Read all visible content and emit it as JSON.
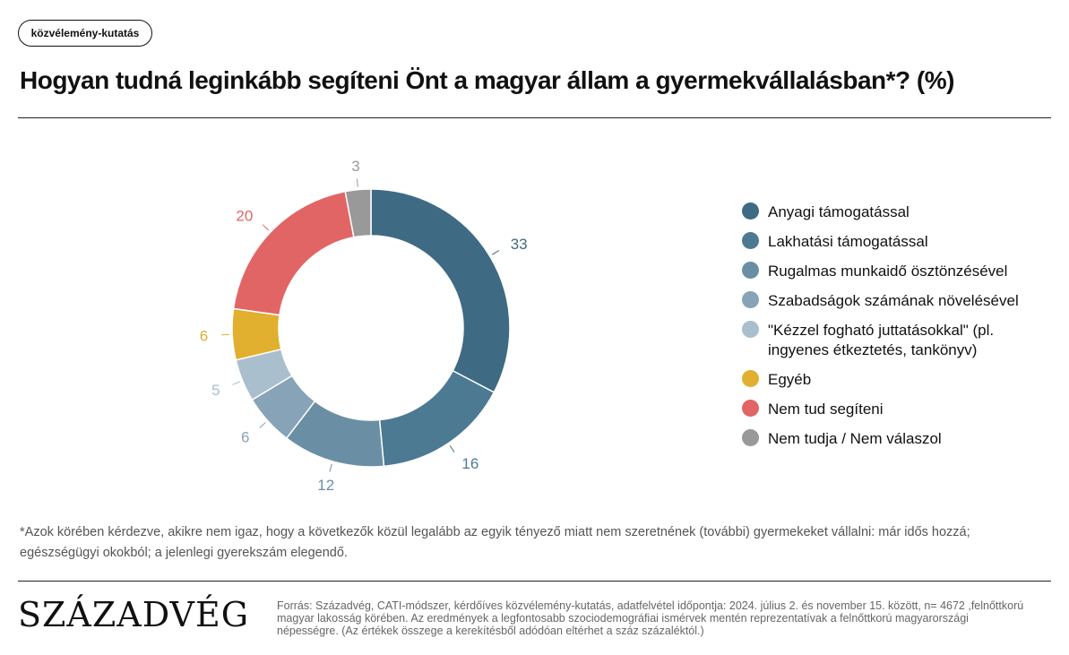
{
  "tag": "közvélemény-kutatás",
  "title": "Hogyan tudná leginkább segíteni Önt a magyar állam a gyermekvállalásban*? (%)",
  "footnote": "*Azok körében kérdezve, akikre nem igaz, hogy a következők közül legalább az egyik tényező miatt nem szeretnének (további) gyermekeket vállalni: már idős hozzá; egészségügyi okokból; a jelenlegi gyerekszám elegendő.",
  "logo": "SZÁZADVÉG",
  "source": "Forrás: Századvég, CATI-módszer, kérdőíves közvélemény-kutatás, adatfelvétel időpontja: 2024. július 2. és november 15. között, n= 4672 ,felnőttkorú magyar lakosság körében. Az eredmények a legfontosabb szociodemográfiai ismérvek mentén reprezentatívak a felnőttkorú magyarországi népességre. (Az értékek összege a kerekítésből adódóan eltérhet a száz százaléktól.)",
  "chart_data": {
    "type": "pie",
    "donut": true,
    "legend_position": "right",
    "categories": [
      "Anyagi támogatással",
      "Lakhatási támogatással",
      "Rugalmas munkaidő ösztönzésével",
      "Szabadságok számának növelésével",
      "\"Kézzel fogható juttatásokkal\" (pl. ingyenes étkeztetés, tankönyv)",
      "Egyéb",
      "Nem tud segíteni",
      "Nem tudja / Nem válaszol"
    ],
    "values": [
      33,
      16,
      12,
      6,
      5,
      6,
      20,
      3
    ],
    "labels": [
      "33",
      "16",
      "12",
      "6",
      "5",
      "6",
      "20",
      "3"
    ],
    "colors": [
      "#3e6b83",
      "#4d7a93",
      "#6a8fa5",
      "#86a3b7",
      "#a9bfce",
      "#e0b02e",
      "#e26565",
      "#999999"
    ]
  }
}
